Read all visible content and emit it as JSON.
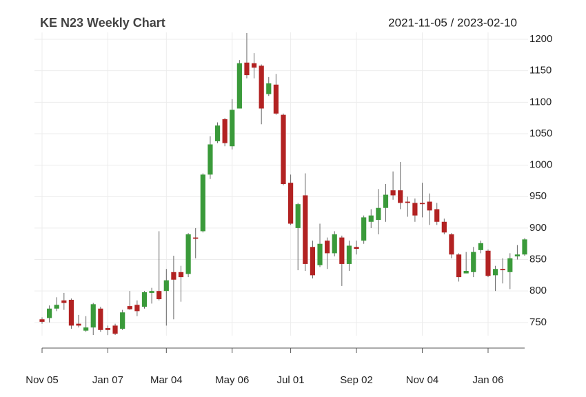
{
  "chart_data": {
    "type": "candlestick",
    "title": "KE N23 Weekly Chart",
    "subtitle": "2021-11-05 / 2023-02-10",
    "categories": [
      "Nov 05",
      null,
      null,
      null,
      null,
      null,
      null,
      null,
      null,
      "Jan 07",
      null,
      null,
      null,
      null,
      null,
      null,
      null,
      "Mar 04",
      null,
      null,
      null,
      null,
      null,
      null,
      null,
      null,
      "May 06",
      null,
      null,
      null,
      null,
      null,
      null,
      null,
      "Jul 01",
      null,
      null,
      null,
      null,
      null,
      null,
      null,
      null,
      "Sep 02",
      null,
      null,
      null,
      null,
      null,
      null,
      null,
      null,
      "Nov 04",
      null,
      null,
      null,
      null,
      null,
      null,
      null,
      null,
      "Jan 06",
      null,
      null,
      null,
      null,
      null
    ],
    "open": [
      755,
      757,
      772,
      785,
      786,
      748,
      737,
      742,
      772,
      741,
      745,
      740,
      776,
      778,
      775,
      797,
      800,
      800,
      830,
      830,
      827,
      885,
      895,
      985,
      1038,
      1073,
      1030,
      1090,
      1163,
      1162,
      1158,
      1113,
      1128,
      1080,
      972,
      900,
      952,
      870,
      841,
      880,
      860,
      885,
      843,
      870,
      880,
      910,
      913,
      932,
      960,
      960,
      942,
      940,
      940,
      942,
      930,
      910,
      890,
      858,
      828,
      830,
      865,
      864,
      825,
      835,
      830,
      855,
      858
    ],
    "high": [
      758,
      777,
      790,
      797,
      788,
      762,
      760,
      781,
      775,
      745,
      748,
      770,
      800,
      785,
      800,
      805,
      895,
      835,
      856,
      840,
      892,
      900,
      987,
      1046,
      1068,
      1075,
      1105,
      1167,
      1210,
      1178,
      1160,
      1140,
      1145,
      1082,
      985,
      940,
      987,
      880,
      907,
      885,
      895,
      888,
      880,
      880,
      920,
      930,
      962,
      970,
      990,
      1005,
      950,
      947,
      972,
      955,
      940,
      915,
      892,
      860,
      862,
      870,
      880,
      866,
      840,
      852,
      860,
      873,
      884
    ],
    "low": [
      748,
      750,
      768,
      770,
      740,
      742,
      735,
      730,
      735,
      730,
      730,
      738,
      770,
      760,
      772,
      780,
      785,
      745,
      755,
      783,
      822,
      852,
      893,
      978,
      1035,
      1030,
      1025,
      1090,
      1138,
      1138,
      1065,
      1110,
      1080,
      968,
      905,
      833,
      832,
      820,
      838,
      835,
      855,
      808,
      832,
      858,
      875,
      900,
      890,
      910,
      945,
      930,
      918,
      910,
      917,
      905,
      905,
      890,
      852,
      815,
      828,
      822,
      860,
      822,
      800,
      812,
      803,
      850,
      856
    ],
    "close": [
      751,
      772,
      778,
      781,
      745,
      745,
      742,
      779,
      738,
      738,
      732,
      766,
      771,
      768,
      798,
      800,
      787,
      817,
      818,
      822,
      890,
      883,
      985,
      1033,
      1063,
      1035,
      1088,
      1162,
      1143,
      1155,
      1090,
      1130,
      1082,
      970,
      907,
      938,
      843,
      825,
      875,
      860,
      890,
      843,
      872,
      867,
      917,
      920,
      932,
      953,
      952,
      940,
      940,
      920,
      938,
      928,
      910,
      893,
      858,
      822,
      832,
      862,
      876,
      824,
      835,
      833,
      852,
      858,
      882
    ],
    "up_color": "#3a9a3a",
    "down_color": "#b22222",
    "ylim": [
      729,
      1211
    ],
    "yticks": [
      750,
      800,
      850,
      900,
      950,
      1000,
      1050,
      1100,
      1150,
      1200
    ],
    "grid": true
  }
}
